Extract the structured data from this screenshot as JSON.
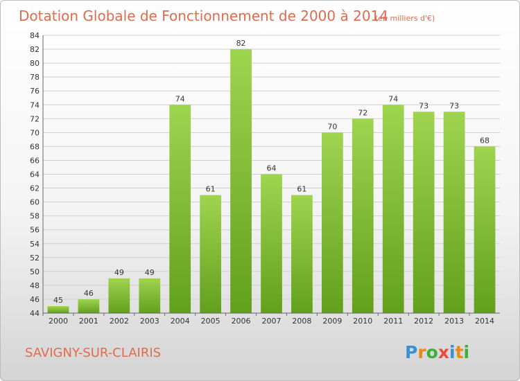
{
  "chart_data": {
    "type": "bar",
    "title": "Dotation Globale de Fonctionnement de 2000 à 2014",
    "subtitle": "(en milliers d'€)",
    "categories": [
      "2000",
      "2001",
      "2002",
      "2003",
      "2004",
      "2005",
      "2006",
      "2007",
      "2008",
      "2009",
      "2010",
      "2011",
      "2012",
      "2013",
      "2014"
    ],
    "values": [
      45,
      46,
      49,
      49,
      74,
      61,
      82,
      64,
      61,
      70,
      72,
      74,
      73,
      73,
      68
    ],
    "data_labels": [
      "45",
      "46",
      "49",
      "49",
      "74",
      "61",
      "82",
      "64",
      "61",
      "70",
      "72",
      "74",
      "73",
      "73",
      "68"
    ],
    "ylim": [
      44,
      84
    ],
    "yticks": [
      "44",
      "46",
      "48",
      "50",
      "52",
      "54",
      "56",
      "58",
      "60",
      "62",
      "64",
      "66",
      "68",
      "70",
      "72",
      "74",
      "76",
      "78",
      "80",
      "82",
      "84"
    ],
    "xlabel": "",
    "ylabel": "",
    "grid": true,
    "legend": "none",
    "bar_color_top": "#9fd44f",
    "bar_color_bottom": "#62a01c"
  },
  "footer": {
    "commune": "SAVIGNY-SUR-CLAIRIS",
    "logo": "Proxiti",
    "logo_letter_colors": [
      "#3b8fd4",
      "#e8891c",
      "#3fae3a",
      "#e94b3c",
      "#3b8fd4",
      "#e8891c",
      "#3fae3a"
    ]
  },
  "colors": {
    "title": "#e06b4c",
    "grid": "#cfcfcf",
    "axis": "#666666"
  }
}
